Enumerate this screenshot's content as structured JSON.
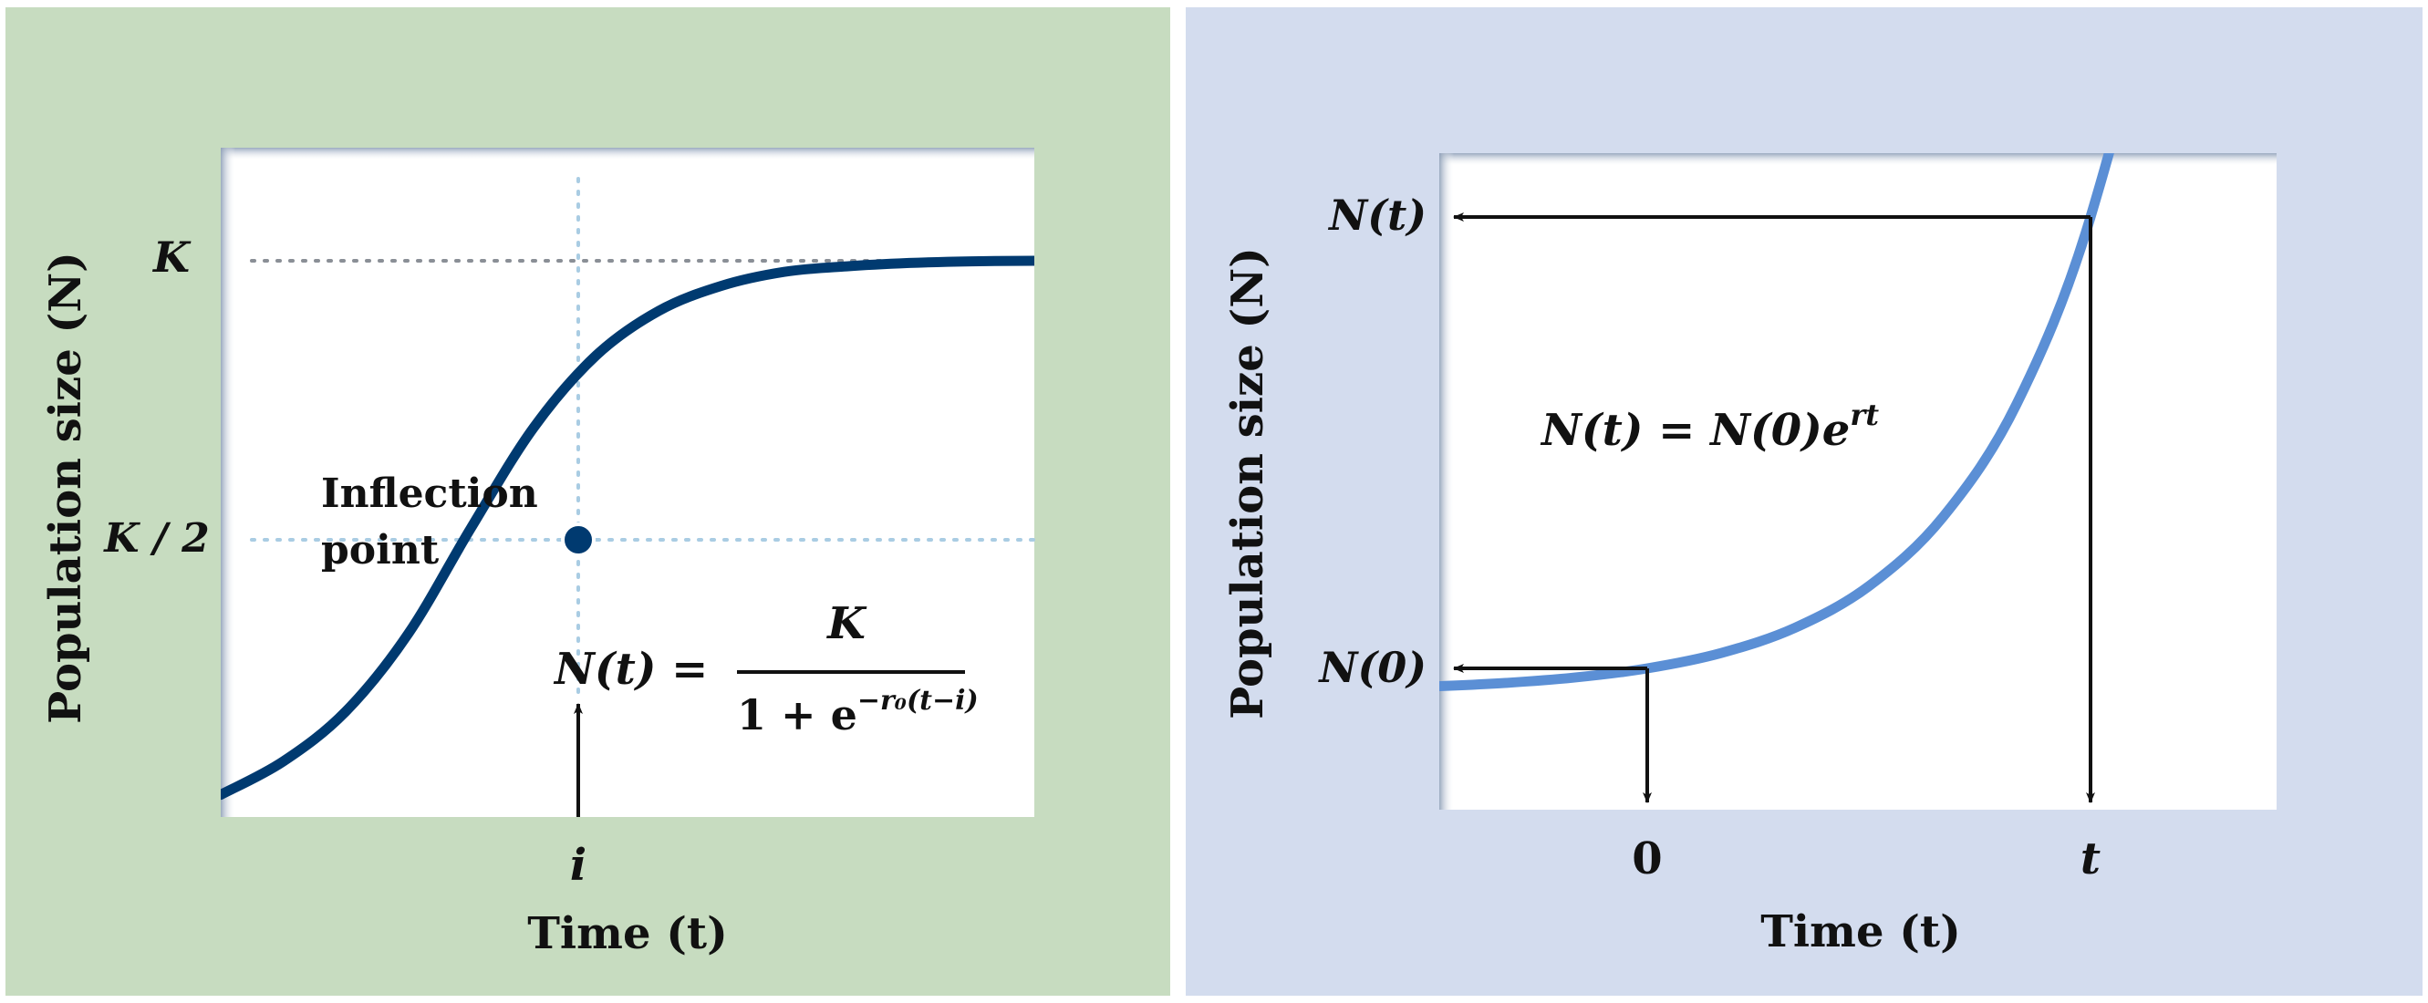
{
  "colors": {
    "left_panel_bg": "#c7dcc0",
    "right_panel_bg": "#d3dcee",
    "plot_bg": "#ffffff",
    "logistic_curve": "#003a70",
    "exponential_curve": "#5b8fd5",
    "guide_dotted_gray": "#8a8f96",
    "guide_dotted_blue": "#a9cce3",
    "arrow": "#111111"
  },
  "chart_data": [
    {
      "type": "line",
      "series": [
        {
          "x": [
            -5,
            -4,
            -3,
            -2,
            -1,
            0,
            1,
            2,
            3,
            4,
            5,
            6,
            7,
            8
          ],
          "y": [
            0.04,
            0.1,
            0.19,
            0.33,
            0.52,
            0.7,
            0.83,
            0.91,
            0.955,
            0.98,
            0.99,
            0.996,
            0.999,
            1.0
          ]
        }
      ],
      "xlabel": "Time (t)",
      "ylabel": "Population size (N)",
      "x_tick_labels": [
        "i"
      ],
      "y_tick_labels": [
        "K",
        "K / 2"
      ],
      "annotations": {
        "inflection_label": [
          "Inflection",
          "point"
        ],
        "formula_lhs": "N(t) =",
        "formula_numerator": "K",
        "formula_den_base": "1 + e",
        "formula_den_exp": "−r₀(t−i)"
      },
      "grid": false,
      "legend": "none"
    },
    {
      "type": "line",
      "series": [
        {
          "x": [
            -2.0,
            -1.5,
            -1.0,
            -0.5,
            0,
            0.5,
            1.0,
            1.5,
            2.0,
            2.5,
            3.0,
            3.5,
            4.0
          ],
          "y": [
            0.135,
            0.223,
            0.368,
            0.607,
            1.0,
            1.649,
            2.718,
            4.48,
            7.39,
            12.18,
            20.09,
            33.1,
            54.6
          ]
        }
      ],
      "xlabel": "Time (t)",
      "ylabel": "Population size (N)",
      "x_tick_labels": [
        "0",
        "t"
      ],
      "y_tick_labels": [
        "N(t)",
        "N(0)"
      ],
      "annotations": {
        "formula_main": "N(t) = N(0)e",
        "formula_exp": "rt"
      },
      "grid": false,
      "legend": "none"
    }
  ]
}
